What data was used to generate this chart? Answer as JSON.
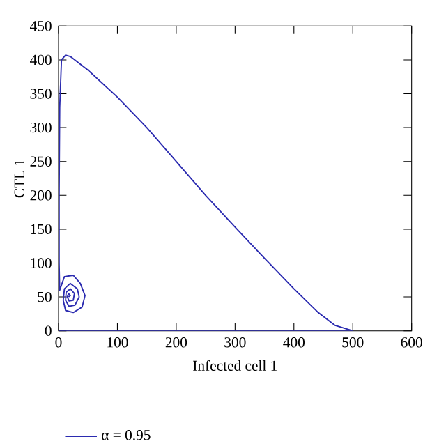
{
  "chart_data": {
    "type": "line",
    "xlabel": "Infected cell 1",
    "ylabel": "CTL 1",
    "series": [
      {
        "name": "α = 0.95",
        "color": "#2b2bb0",
        "x": [
          0,
          500,
          470,
          440,
          400,
          350,
          300,
          250,
          200,
          150,
          100,
          50,
          20,
          12,
          5,
          2,
          1,
          1,
          2,
          10,
          25,
          37,
          45,
          40,
          25,
          12,
          8,
          10,
          20,
          32,
          35,
          28,
          18,
          12,
          13,
          20,
          27,
          25,
          18,
          15,
          17,
          20,
          17
        ],
        "values": [
          0,
          0,
          8,
          28,
          62,
          107,
          153,
          200,
          250,
          300,
          345,
          385,
          405,
          407,
          400,
          330,
          200,
          100,
          60,
          80,
          82,
          70,
          52,
          35,
          27,
          30,
          45,
          62,
          70,
          62,
          50,
          38,
          36,
          45,
          57,
          62,
          55,
          45,
          44,
          50,
          55,
          52,
          50
        ]
      }
    ],
    "xlim": [
      0,
      600
    ],
    "ylim": [
      0,
      450
    ],
    "xticks": [
      0,
      100,
      200,
      300,
      400,
      500,
      600
    ],
    "yticks": [
      0,
      50,
      100,
      150,
      200,
      250,
      300,
      350,
      400,
      450
    ],
    "grid": false,
    "legend": "bottom",
    "marker": "none",
    "line_style": "solid"
  }
}
